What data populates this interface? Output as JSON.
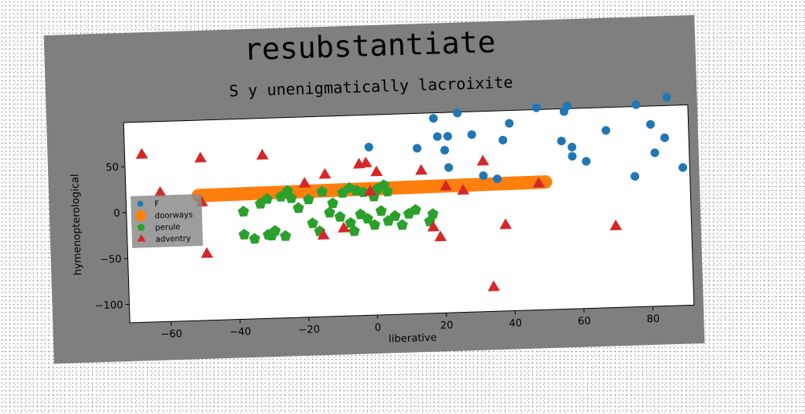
{
  "chart_data": {
    "type": "scatter",
    "title": "resubstantiate",
    "subtitle": "S y unenigmatically lacroixite",
    "xlabel": "liberative",
    "ylabel": "hymenopterological",
    "xlim": [
      -72,
      92
    ],
    "ylim": [
      -120,
      98
    ],
    "xticks": [
      -60,
      -40,
      -20,
      0,
      20,
      40,
      60,
      80
    ],
    "yticks": [
      -100,
      -50,
      0,
      50
    ],
    "grid": false,
    "legend_position": "center-left",
    "series": [
      {
        "name": "F",
        "color": "#1f77b4",
        "marker": "circle",
        "points": [
          [
            -1,
            63
          ],
          [
            13,
            60
          ],
          [
            21,
            57
          ],
          [
            18,
            92
          ],
          [
            25,
            97
          ],
          [
            19,
            72
          ],
          [
            22,
            72
          ],
          [
            29,
            73
          ],
          [
            32,
            28
          ],
          [
            38,
            66
          ],
          [
            40,
            84
          ],
          [
            48,
            100
          ],
          [
            56,
            95
          ],
          [
            57,
            101
          ],
          [
            55,
            63
          ],
          [
            58,
            56
          ],
          [
            62,
            40
          ],
          [
            58,
            46
          ],
          [
            68,
            73
          ],
          [
            77,
            100
          ],
          [
            76,
            22
          ],
          [
            81,
            78
          ],
          [
            82,
            47
          ],
          [
            85,
            63
          ],
          [
            86,
            107
          ],
          [
            90,
            30
          ],
          [
            36,
            24
          ],
          [
            22,
            38
          ]
        ]
      },
      {
        "name": "doorways",
        "color": "#ff7f0e",
        "marker": "line",
        "points": [
          [
            -51,
            16
          ],
          [
            50,
            19
          ]
        ]
      },
      {
        "name": "perule",
        "color": "#2ca02c",
        "marker": "pentagon",
        "points": [
          [
            -38,
            -3
          ],
          [
            -33,
            5
          ],
          [
            -31,
            10
          ],
          [
            -27,
            12
          ],
          [
            -25,
            18
          ],
          [
            -24,
            10
          ],
          [
            -22,
            -1
          ],
          [
            -19,
            8
          ],
          [
            -15,
            16
          ],
          [
            -12,
            3
          ],
          [
            -9,
            14
          ],
          [
            -7,
            19
          ],
          [
            -5,
            16
          ],
          [
            -3,
            14
          ],
          [
            0,
            9
          ],
          [
            1,
            17
          ],
          [
            3,
            21
          ],
          [
            4,
            14
          ],
          [
            -18,
            -18
          ],
          [
            -16,
            -27
          ],
          [
            -13,
            -7
          ],
          [
            -10,
            -12
          ],
          [
            -7,
            -19
          ],
          [
            -6,
            -28
          ],
          [
            -4,
            -10
          ],
          [
            -2,
            -15
          ],
          [
            0,
            -22
          ],
          [
            2,
            -7
          ],
          [
            4,
            -18
          ],
          [
            6,
            -13
          ],
          [
            8,
            -23
          ],
          [
            10,
            -11
          ],
          [
            12,
            -7
          ],
          [
            -38,
            -28
          ],
          [
            -35,
            -33
          ],
          [
            -31,
            -29
          ],
          [
            -29,
            -25
          ],
          [
            -26,
            -31
          ],
          [
            -30,
            -30
          ],
          [
            17,
            -12
          ],
          [
            16,
            -20
          ]
        ]
      },
      {
        "name": "adventry",
        "color": "#d62728",
        "marker": "triangle",
        "points": [
          [
            -67,
            62
          ],
          [
            -62,
            20
          ],
          [
            -50,
            56
          ],
          [
            -50,
            8
          ],
          [
            -49,
            -48
          ],
          [
            -32,
            57
          ],
          [
            -20,
            25
          ],
          [
            -14,
            34
          ],
          [
            -15,
            -32
          ],
          [
            -9,
            -25
          ],
          [
            -4,
            44
          ],
          [
            -2,
            45
          ],
          [
            1,
            35
          ],
          [
            -1,
            14
          ],
          [
            14,
            35
          ],
          [
            17,
            -27
          ],
          [
            19,
            -38
          ],
          [
            21,
            17
          ],
          [
            26,
            12
          ],
          [
            32,
            43
          ],
          [
            34,
            -94
          ],
          [
            38,
            -27
          ],
          [
            48,
            17
          ],
          [
            70,
            -32
          ]
        ]
      }
    ]
  }
}
